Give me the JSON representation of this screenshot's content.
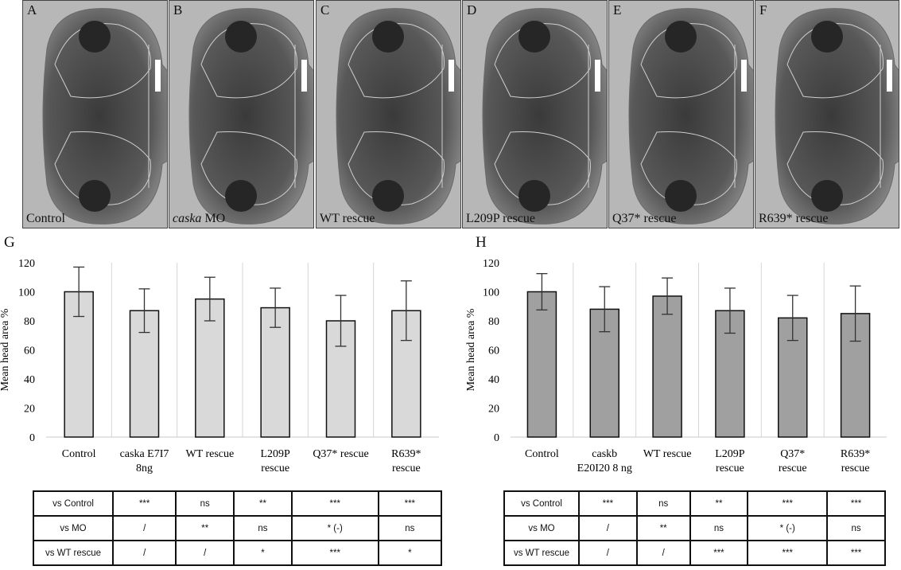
{
  "panels": [
    {
      "letter": "A",
      "caption": "Control",
      "italic_part": ""
    },
    {
      "letter": "B",
      "caption": " MO",
      "italic_part": "caska"
    },
    {
      "letter": "C",
      "caption": "WT rescue",
      "italic_part": ""
    },
    {
      "letter": "D",
      "caption": "L209P rescue",
      "italic_part": ""
    },
    {
      "letter": "E",
      "caption": "Q37* rescue",
      "italic_part": ""
    },
    {
      "letter": "F",
      "caption": "R639* rescue",
      "italic_part": ""
    }
  ],
  "chart_data": [
    {
      "panel_label": "G",
      "type": "bar",
      "ylabel": "Mean head area %",
      "ylim": [
        0,
        120
      ],
      "yticks": [
        0,
        20,
        40,
        60,
        80,
        100,
        120
      ],
      "categories": [
        [
          "Control"
        ],
        [
          "caska E7I7",
          "8ng"
        ],
        [
          "WT rescue"
        ],
        [
          "L209P",
          "rescue"
        ],
        [
          "Q37* rescue"
        ],
        [
          "R639*",
          "rescue"
        ]
      ],
      "values": [
        100,
        87,
        95,
        89,
        80,
        87
      ],
      "errors": [
        17,
        15,
        15,
        13.5,
        17.5,
        20.5
      ],
      "bar_color": "#d9d9d9",
      "grid": "vertical separators"
    },
    {
      "panel_label": "H",
      "type": "bar",
      "ylabel": "Mean head area %",
      "ylim": [
        0,
        120
      ],
      "yticks": [
        0,
        20,
        40,
        60,
        80,
        100,
        120
      ],
      "categories": [
        [
          "Control"
        ],
        [
          "caskb",
          "E20I20 8 ng"
        ],
        [
          "WT rescue"
        ],
        [
          "L209P",
          "rescue"
        ],
        [
          "Q37*",
          "rescue"
        ],
        [
          "R639*",
          "rescue"
        ]
      ],
      "values": [
        100,
        88,
        97,
        87,
        82,
        85
      ],
      "errors": [
        12.5,
        15.5,
        12.5,
        15.5,
        15.5,
        19
      ],
      "bar_color": "#a0a0a0",
      "grid": "vertical separators"
    }
  ],
  "tables": [
    {
      "rows": [
        {
          "label": "vs Control",
          "cells": [
            "***",
            "ns",
            "**",
            "***",
            "***"
          ]
        },
        {
          "label": "vs MO",
          "cells": [
            "/",
            "**",
            "ns",
            "* (-)",
            "ns"
          ]
        },
        {
          "label": "vs WT rescue",
          "cells": [
            "/",
            "/",
            "*",
            "***",
            "*"
          ]
        }
      ]
    },
    {
      "rows": [
        {
          "label": "vs Control",
          "cells": [
            "***",
            "ns",
            "**",
            "***",
            "***"
          ]
        },
        {
          "label": "vs MO",
          "cells": [
            "/",
            "**",
            "ns",
            "* (-)",
            "ns"
          ]
        },
        {
          "label": "vs WT rescue",
          "cells": [
            "/",
            "/",
            "***",
            "***",
            "***"
          ]
        }
      ]
    }
  ]
}
